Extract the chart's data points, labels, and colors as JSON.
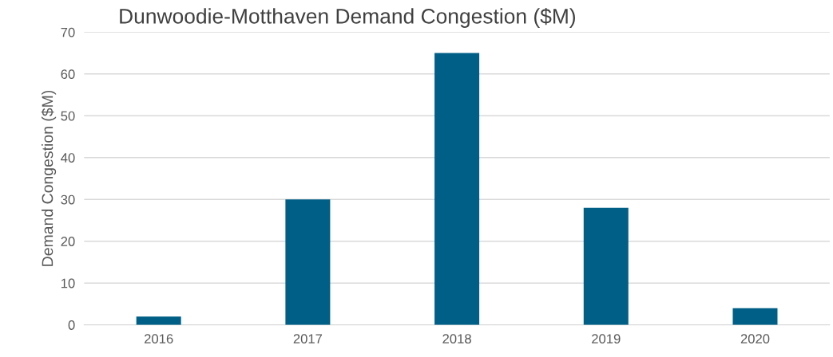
{
  "chart_data": {
    "type": "bar",
    "title": "Dunwoodie-Motthaven Demand Congestion ($M)",
    "ylabel": "Demand Congestion ($M)",
    "categories": [
      "2016",
      "2017",
      "2018",
      "2019",
      "2020"
    ],
    "values": [
      2,
      30,
      65,
      28,
      4
    ],
    "color": "#005f87",
    "ylim": [
      0,
      70
    ],
    "yticks": [
      0,
      10,
      20,
      30,
      40,
      50,
      60,
      70
    ],
    "grid": "y",
    "legend": false
  }
}
